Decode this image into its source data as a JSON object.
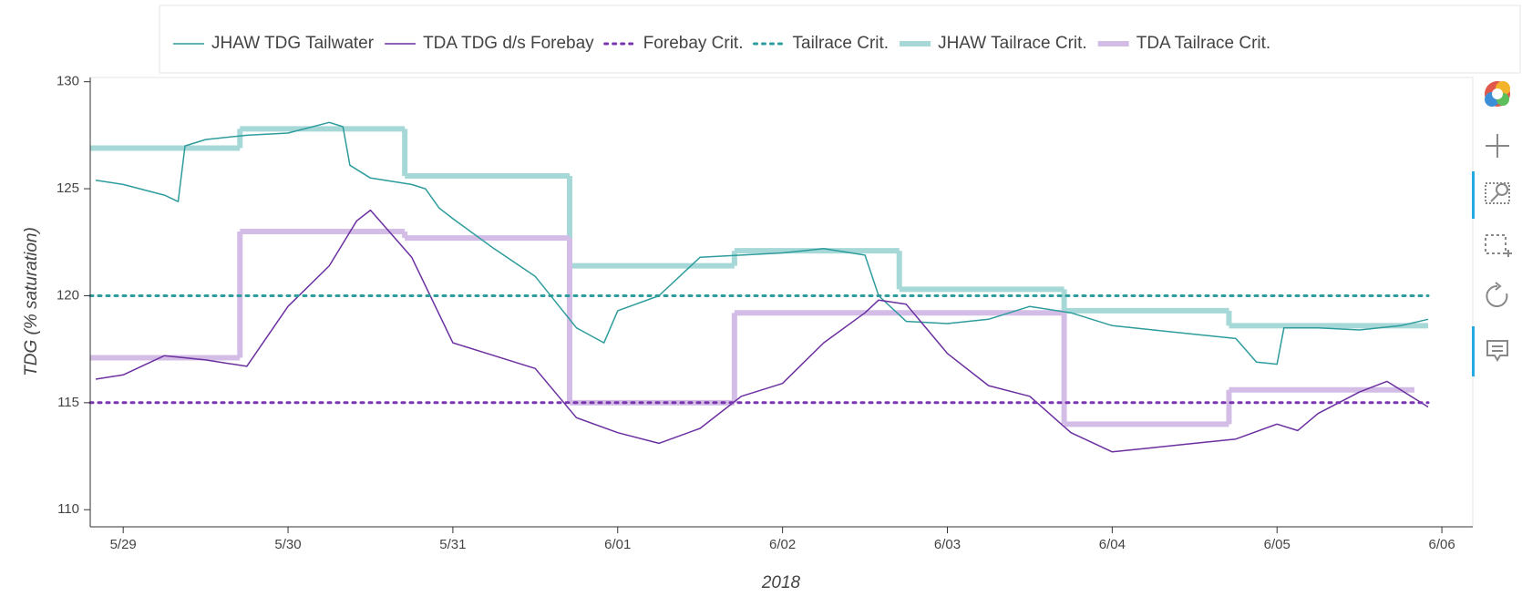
{
  "chart_data": {
    "type": "line",
    "xlabel": "2018",
    "ylabel": "TDG (% saturation)",
    "xlim": [
      "2018-05-28T19:12",
      "2018-06-06T04:30"
    ],
    "ylim": [
      109.2,
      130.2
    ],
    "yticks": [
      110,
      115,
      120,
      125,
      130
    ],
    "xticks": [
      {
        "value": "2018-05-29T00:00",
        "label": "5/29"
      },
      {
        "value": "2018-05-30T00:00",
        "label": "5/30"
      },
      {
        "value": "2018-05-31T00:00",
        "label": "5/31"
      },
      {
        "value": "2018-06-01T00:00",
        "label": "6/01"
      },
      {
        "value": "2018-06-02T00:00",
        "label": "6/02"
      },
      {
        "value": "2018-06-03T00:00",
        "label": "6/03"
      },
      {
        "value": "2018-06-04T00:00",
        "label": "6/04"
      },
      {
        "value": "2018-06-05T00:00",
        "label": "6/05"
      },
      {
        "value": "2018-06-06T00:00",
        "label": "6/06"
      }
    ],
    "legend": "top",
    "series": [
      {
        "name": "JHAW TDG Tailwater",
        "color": "#2e9c9c",
        "line_width": 1.5,
        "dash": "solid",
        "step": false,
        "x": [
          "2018-05-28T20:00",
          "2018-05-29T00:00",
          "2018-05-29T06:00",
          "2018-05-29T08:00",
          "2018-05-29T09:00",
          "2018-05-29T12:00",
          "2018-05-29T18:00",
          "2018-05-30T00:00",
          "2018-05-30T06:00",
          "2018-05-30T08:00",
          "2018-05-30T09:00",
          "2018-05-30T12:00",
          "2018-05-30T18:00",
          "2018-05-30T20:00",
          "2018-05-30T22:00",
          "2018-05-31T00:00",
          "2018-05-31T06:00",
          "2018-05-31T12:00",
          "2018-05-31T18:00",
          "2018-05-31T22:00",
          "2018-06-01T00:00",
          "2018-06-01T06:00",
          "2018-06-01T12:00",
          "2018-06-01T18:00",
          "2018-06-02T00:00",
          "2018-06-02T06:00",
          "2018-06-02T12:00",
          "2018-06-02T14:00",
          "2018-06-02T18:00",
          "2018-06-03T00:00",
          "2018-06-03T06:00",
          "2018-06-03T12:00",
          "2018-06-03T18:00",
          "2018-06-04T00:00",
          "2018-06-04T06:00",
          "2018-06-04T12:00",
          "2018-06-04T18:00",
          "2018-06-04T21:00",
          "2018-06-05T00:00",
          "2018-06-05T01:00",
          "2018-06-05T06:00",
          "2018-06-05T12:00",
          "2018-06-05T18:00",
          "2018-06-05T22:00"
        ],
        "values": [
          125.4,
          125.2,
          124.7,
          124.4,
          127.0,
          127.3,
          127.5,
          127.6,
          128.1,
          127.9,
          126.1,
          125.5,
          125.2,
          125.0,
          124.1,
          123.6,
          122.2,
          120.9,
          118.5,
          117.8,
          119.3,
          120.0,
          121.8,
          121.9,
          122.0,
          122.2,
          121.9,
          120.0,
          118.8,
          118.7,
          118.9,
          119.5,
          119.2,
          118.6,
          118.4,
          118.2,
          118.0,
          116.9,
          116.8,
          118.5,
          118.5,
          118.4,
          118.6,
          118.9
        ]
      },
      {
        "name": "TDA TDG d/s Forebay",
        "color": "#6b2fa0",
        "line_width": 1.5,
        "dash": "solid",
        "step": false,
        "x": [
          "2018-05-28T20:00",
          "2018-05-29T00:00",
          "2018-05-29T06:00",
          "2018-05-29T12:00",
          "2018-05-29T18:00",
          "2018-05-30T00:00",
          "2018-05-30T06:00",
          "2018-05-30T10:00",
          "2018-05-30T12:00",
          "2018-05-30T18:00",
          "2018-05-31T00:00",
          "2018-05-31T06:00",
          "2018-05-31T12:00",
          "2018-05-31T18:00",
          "2018-06-01T00:00",
          "2018-06-01T06:00",
          "2018-06-01T12:00",
          "2018-06-01T18:00",
          "2018-06-02T00:00",
          "2018-06-02T06:00",
          "2018-06-02T12:00",
          "2018-06-02T14:00",
          "2018-06-02T18:00",
          "2018-06-03T00:00",
          "2018-06-03T06:00",
          "2018-06-03T12:00",
          "2018-06-03T18:00",
          "2018-06-04T00:00",
          "2018-06-04T06:00",
          "2018-06-04T12:00",
          "2018-06-04T18:00",
          "2018-06-05T00:00",
          "2018-06-05T03:00",
          "2018-06-05T06:00",
          "2018-06-05T12:00",
          "2018-06-05T16:00",
          "2018-06-05T22:00"
        ],
        "values": [
          116.1,
          116.3,
          117.2,
          117.0,
          116.7,
          119.5,
          121.4,
          123.5,
          124.0,
          121.8,
          117.8,
          117.2,
          116.6,
          114.3,
          113.6,
          113.1,
          113.8,
          115.3,
          115.9,
          117.8,
          119.2,
          119.8,
          119.6,
          117.3,
          115.8,
          115.3,
          113.6,
          112.7,
          112.9,
          113.1,
          113.3,
          114.0,
          113.7,
          114.5,
          115.5,
          116.0,
          114.8
        ]
      },
      {
        "name": "Forebay Crit.",
        "color": "#7a35b0",
        "line_width": 3,
        "dash": "dotted",
        "step": false,
        "x": [
          "2018-05-28T19:12",
          "2018-06-05T22:00"
        ],
        "values": [
          115,
          115
        ]
      },
      {
        "name": "Tailrace Crit.",
        "color": "#2e9c9c",
        "line_width": 3,
        "dash": "dotted",
        "step": false,
        "x": [
          "2018-05-28T19:12",
          "2018-06-05T22:00"
        ],
        "values": [
          120,
          120
        ]
      },
      {
        "name": "JHAW Tailrace Crit.",
        "color": "#a6d8d8",
        "line_width": 6,
        "dash": "solid",
        "step": true,
        "x": [
          "2018-05-28T19:12",
          "2018-05-29T17:00",
          "2018-05-30T17:00",
          "2018-05-31T17:00",
          "2018-06-01T17:00",
          "2018-06-02T17:00",
          "2018-06-03T17:00",
          "2018-06-04T17:00",
          "2018-06-05T22:00"
        ],
        "values": [
          126.9,
          127.8,
          125.6,
          121.4,
          122.1,
          120.3,
          119.3,
          118.6,
          118.6
        ]
      },
      {
        "name": "TDA Tailrace Crit.",
        "color": "#d3bde6",
        "line_width": 6,
        "dash": "solid",
        "step": true,
        "x": [
          "2018-05-28T19:12",
          "2018-05-29T17:00",
          "2018-05-30T17:00",
          "2018-05-31T17:00",
          "2018-06-01T17:00",
          "2018-06-03T17:00",
          "2018-06-04T17:00",
          "2018-06-05T20:00"
        ],
        "values": [
          117.1,
          123.0,
          122.7,
          115.0,
          119.2,
          114.0,
          115.6,
          115.6
        ]
      }
    ]
  }
}
